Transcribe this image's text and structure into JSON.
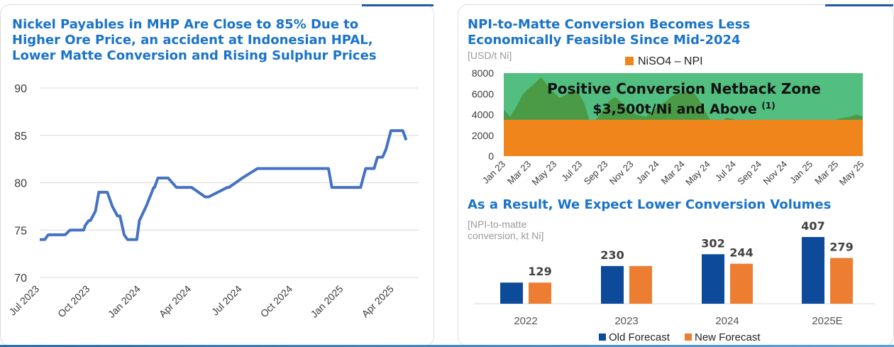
{
  "colors": {
    "title": "#1a73c9",
    "line": "#4472c4",
    "npi_area": "#f0851c",
    "netback_zone": "#52be80",
    "niso4_area": "#4b9a45",
    "old_forecast": "#0d4b9a",
    "new_forecast": "#ed7d31"
  },
  "left": {
    "title_lines": [
      "Nickel Payables in MHP Are Close to 85% Due to",
      "Higher Ore Price, an accident at Indonesian HPAL,",
      "Lower Matte Conversion and Rising Sulphur Prices"
    ]
  },
  "right_top": {
    "title_lines": [
      "NPI-to-Matte Conversion Becomes Less",
      "Economically Feasible Since Mid-2024"
    ],
    "unit": "[USD/t Ni]",
    "legend_label": "NiSO4 – NPI",
    "zone_line1": "Positive Conversion Netback Zone",
    "zone_line2": "$3,500t/Ni and Above",
    "zone_footnote": "(1)"
  },
  "right_bottom": {
    "title": "As a Result, We Expect Lower Conversion Volumes",
    "unit_line1": "[NPI-to-matte",
    "unit_line2": "conversion, kt Ni]"
  },
  "chart_data": [
    {
      "type": "line",
      "title": "Nickel Payables in MHP Are Close to 85% Due to Higher Ore Price, an accident at Indonesian HPAL, Lower Matte Conversion and Rising Sulphur Prices",
      "x_tick_labels": [
        "Jul 2023",
        "Oct 2023",
        "Jan 2024",
        "Apr 2024",
        "Jul 2024",
        "Oct 2024",
        "Jan 2025",
        "Apr 2025"
      ],
      "y_ticks": [
        70,
        75,
        80,
        85,
        90
      ],
      "ylim": [
        70,
        90
      ],
      "grid": true,
      "series": [
        {
          "x_month_offset": [
            0,
            0.3,
            0.5,
            1.5,
            1.8,
            2.6,
            2.7,
            2.9,
            3.0,
            3.3,
            3.5,
            3.75,
            4.0,
            4.3,
            4.6,
            4.75,
            5.0,
            5.2,
            5.4,
            5.55,
            5.75,
            5.9,
            6.3,
            6.75,
            6.8,
            7.0,
            7.3,
            7.6,
            8.1,
            8.5,
            9.0,
            9.8,
            10.0,
            11.1,
            11.2,
            12.0,
            12.9,
            13.3,
            13.7,
            16.0,
            17.1,
            17.3,
            18.2,
            19.0,
            19.3,
            19.8,
            20.0,
            20.3,
            20.5,
            20.8,
            21.5,
            21.7
          ],
          "values": [
            74,
            74,
            74.5,
            74.5,
            75,
            75,
            75.5,
            76,
            76,
            77,
            79,
            79,
            79,
            77.5,
            76.5,
            76.5,
            74.5,
            74,
            74,
            74,
            74,
            76,
            77.5,
            79.5,
            79.5,
            80.5,
            80.5,
            80.5,
            79.5,
            79.5,
            79.5,
            78.5,
            78.5,
            79.5,
            79.5,
            80.5,
            81.5,
            81.5,
            81.5,
            81.5,
            81.5,
            79.5,
            79.5,
            79.5,
            81.5,
            81.5,
            82.7,
            82.7,
            83.5,
            85.5,
            85.5,
            84.5
          ]
        }
      ]
    },
    {
      "type": "area",
      "title": "NPI-to-Matte Conversion Becomes Less Economically Feasible Since Mid-2024",
      "ylabel": "[USD/t Ni]",
      "x_tick_labels": [
        "Jan 23",
        "Mar 23",
        "May 23",
        "Jul 23",
        "Sep 23",
        "Nov 23",
        "Jan 24",
        "Mar 24",
        "May 24",
        "Jul 24",
        "Sep 24",
        "Nov 24",
        "Jan 25",
        "Mar 25",
        "May 25"
      ],
      "y_ticks": [
        0,
        2000,
        4000,
        6000,
        8000
      ],
      "ylim": [
        0,
        8000
      ],
      "legend": "top",
      "threshold": 3500,
      "series": [
        {
          "name": "NiSO4 – NPI",
          "x_month_offset": [
            0,
            0.5,
            1,
            1.5,
            2,
            2.5,
            3,
            3.5,
            4,
            4.5,
            5,
            5.5,
            6,
            6.5,
            7,
            7.5,
            8,
            8.5,
            9,
            9.5,
            10,
            10.5,
            11,
            11.5,
            12,
            12.5,
            13,
            13.5,
            14,
            14.5,
            15,
            15.5,
            16,
            16.5,
            17,
            17.5,
            18,
            18.5,
            19,
            19.5,
            20,
            20.5,
            21,
            21.5,
            22,
            22.5,
            23,
            23.5,
            24,
            24.5,
            25,
            25.5,
            26,
            26.5,
            27,
            27.5,
            28,
            28.5,
            29
          ],
          "values": [
            4500,
            3800,
            4700,
            5900,
            6500,
            7000,
            7600,
            6900,
            6200,
            5600,
            5900,
            6400,
            6200,
            5100,
            3100,
            3600,
            4400,
            5300,
            5700,
            5200,
            4500,
            4100,
            3900,
            3800,
            4300,
            4800,
            5200,
            5700,
            6000,
            6100,
            6300,
            5900,
            5000,
            3800,
            3000,
            3200,
            3700,
            3600,
            3300,
            2800,
            2700,
            2900,
            3100,
            3200,
            3300,
            3300,
            3300,
            3300,
            3200,
            3100,
            3000,
            3000,
            3200,
            3400,
            3600,
            3700,
            3800,
            4000,
            3800
          ]
        }
      ]
    },
    {
      "type": "bar",
      "categories": [
        "2022",
        "2023",
        "2024",
        "2025E"
      ],
      "ylabel": "[NPI-to-matte conversion, kt Ni]",
      "legend": "bottom",
      "series": [
        {
          "name": "Old Forecast",
          "values": [
            129,
            230,
            302,
            407
          ],
          "labels": [
            "",
            "230",
            "302",
            "407"
          ]
        },
        {
          "name": "New Forecast",
          "values": [
            129,
            230,
            244,
            279
          ],
          "labels": [
            "129",
            "",
            "244",
            "279"
          ]
        }
      ]
    }
  ]
}
